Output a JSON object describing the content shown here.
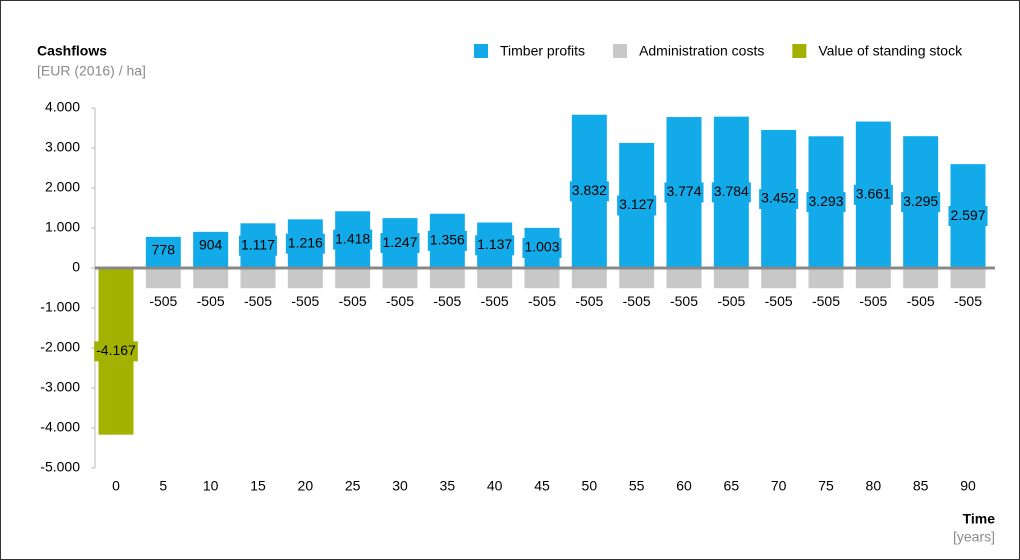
{
  "chart_data": {
    "type": "bar",
    "title": "Cashflows",
    "subtitle": "[EUR (2016) / ha]",
    "x_label": "Time",
    "x_unit": "[years]",
    "categories": [
      "0",
      "5",
      "10",
      "15",
      "20",
      "25",
      "30",
      "35",
      "40",
      "45",
      "50",
      "55",
      "60",
      "65",
      "70",
      "75",
      "80",
      "85",
      "90"
    ],
    "series": [
      {
        "name": "Timber profits",
        "color": "#12aae8",
        "values": [
          null,
          778,
          904,
          1117,
          1216,
          1418,
          1247,
          1356,
          1137,
          1003,
          3832,
          3127,
          3774,
          3784,
          3452,
          3293,
          3661,
          3295,
          2597
        ],
        "value_labels": [
          null,
          "778",
          "904",
          "1.117",
          "1.216",
          "1.418",
          "1.247",
          "1.356",
          "1.137",
          "1.003",
          "3.832",
          "3.127",
          "3.774",
          "3.784",
          "3.452",
          "3.293",
          "3.661",
          "3.295",
          "2.597"
        ]
      },
      {
        "name": "Administration costs",
        "color": "#c8c8c8",
        "values": [
          null,
          -505,
          -505,
          -505,
          -505,
          -505,
          -505,
          -505,
          -505,
          -505,
          -505,
          -505,
          -505,
          -505,
          -505,
          -505,
          -505,
          -505,
          -505
        ]
      },
      {
        "name": "Value of standing stock",
        "color": "#a3b100",
        "values": [
          -4167,
          null,
          null,
          null,
          null,
          null,
          null,
          null,
          null,
          null,
          null,
          null,
          null,
          null,
          null,
          null,
          null,
          null,
          null
        ],
        "value_labels": [
          "-4.167",
          null,
          null,
          null,
          null,
          null,
          null,
          null,
          null,
          null,
          null,
          null,
          null,
          null,
          null,
          null,
          null,
          null,
          null
        ]
      }
    ],
    "ylim": [
      -5000,
      4000
    ],
    "yticks": [
      {
        "value": -5000,
        "label": "-5.000"
      },
      {
        "value": -4000,
        "label": "-4.000"
      },
      {
        "value": -3000,
        "label": "-3.000"
      },
      {
        "value": -2000,
        "label": "-2.000"
      },
      {
        "value": -1000,
        "label": "-1.000"
      },
      0,
      {
        "value": 1000,
        "label": "1.000"
      },
      {
        "value": 2000,
        "label": "2.000"
      },
      {
        "value": 3000,
        "label": "3.000"
      },
      {
        "value": 4000,
        "label": "4.000"
      }
    ]
  }
}
